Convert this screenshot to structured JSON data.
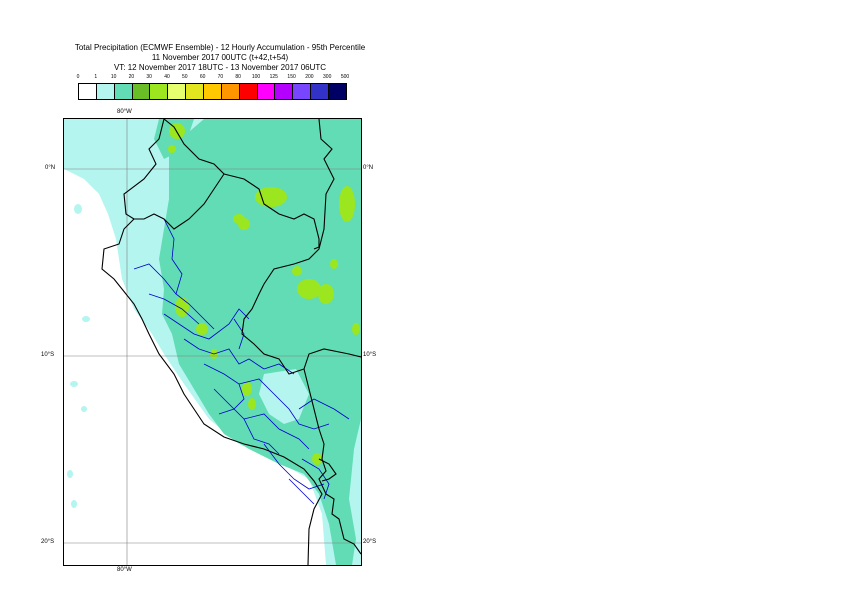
{
  "header": {
    "line1": "Total Precipitation (ECMWF Ensemble) - 12 Hourly Accumulation - 95th Percentile",
    "line2": "11 November 2017 00UTC (t+42,t+54)",
    "line3": "VT: 12 November 2017 18UTC - 13 November 2017 06UTC"
  },
  "colorbar": {
    "labels": [
      "0",
      "1",
      "10",
      "20",
      "30",
      "40",
      "50",
      "60",
      "70",
      "80",
      "100",
      "125",
      "150",
      "200",
      "300",
      "500"
    ],
    "colors": [
      "#ffffff",
      "#b4f5f0",
      "#62dcb4",
      "#69be28",
      "#9be61e",
      "#e6ff6e",
      "#e1e61e",
      "#ffc800",
      "#ff9600",
      "#ff0000",
      "#ff00ff",
      "#b400ff",
      "#7846ff",
      "#3232c8",
      "#000064"
    ]
  },
  "axes": {
    "lon_top": "80°W",
    "lon_bottom": "80°W",
    "lat_left": [
      "0°N",
      "10°S",
      "20°S"
    ],
    "lat_right": [
      "0°N",
      "10°S",
      "20°S"
    ]
  },
  "colors": {
    "land_border": "#000000",
    "admin_border": "#0000cd",
    "grid": "#808080"
  }
}
